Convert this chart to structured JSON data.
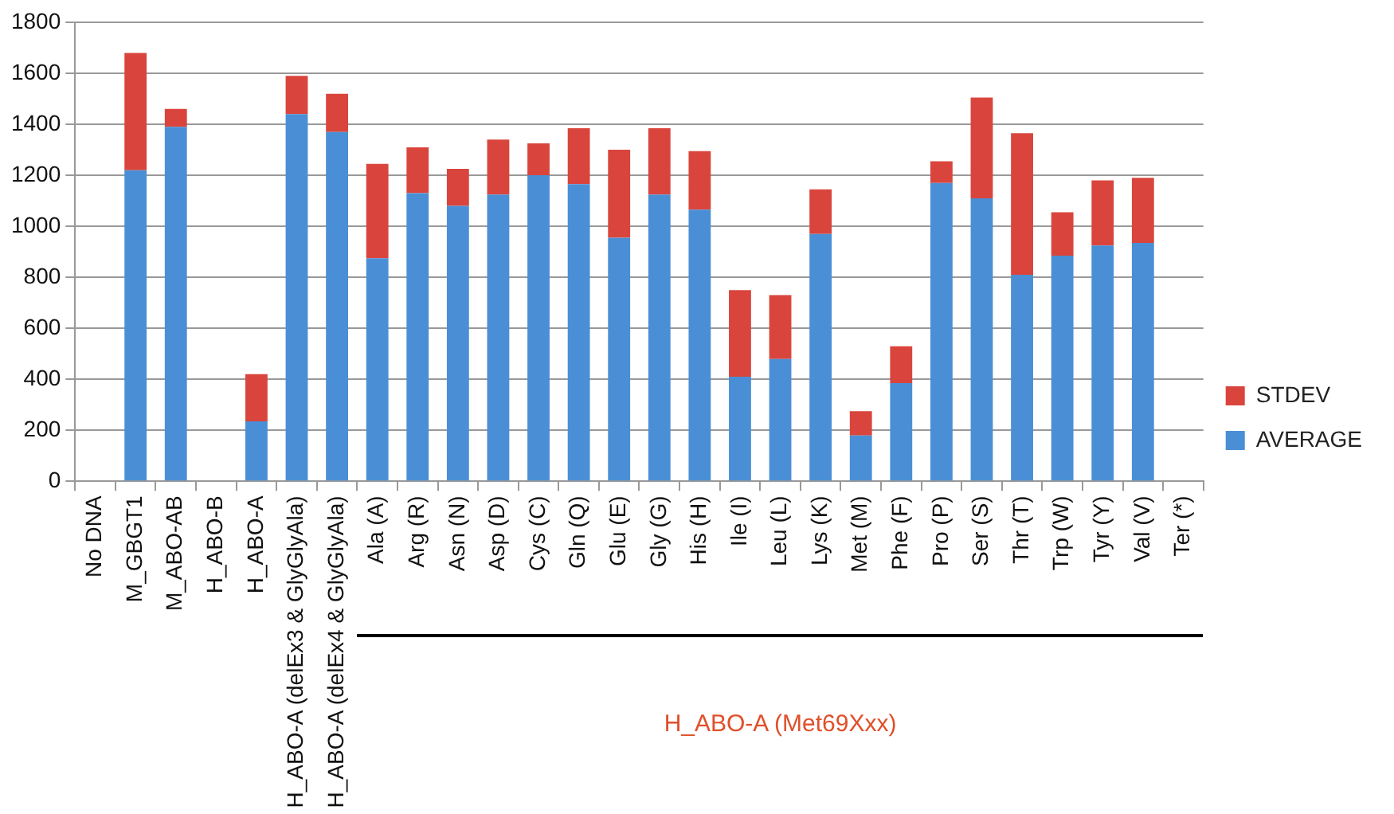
{
  "chart_data": {
    "type": "bar",
    "stacked": true,
    "categories": [
      "No DNA",
      "M_GBGT1",
      "M_ABO-AB",
      "H_ABO-B",
      "H_ABO-A",
      "H_ABO-A (delEx3 & GlyGlyAla)",
      "H_ABO-A (delEx4 & GlyGlyAla)",
      "Ala (A)",
      "Arg (R)",
      "Asn (N)",
      "Asp (D)",
      "Cys (C)",
      "Gln (Q)",
      "Glu (E)",
      "Gly (G)",
      "His (H)",
      "Ile (I)",
      "Leu (L)",
      "Lys (K)",
      "Met (M)",
      "Phe (F)",
      "Pro (P)",
      "Ser (S)",
      "Thr (T)",
      "Trp (W)",
      "Tyr (Y)",
      "Val (V)",
      "Ter (*)"
    ],
    "series": [
      {
        "name": "AVERAGE",
        "color": "#4a8fd6",
        "values": [
          0,
          1220,
          1390,
          0,
          235,
          1440,
          1370,
          875,
          1130,
          1080,
          1125,
          1200,
          1165,
          955,
          1125,
          1065,
          410,
          480,
          970,
          180,
          385,
          1170,
          1110,
          810,
          885,
          925,
          935,
          0
        ]
      },
      {
        "name": "STDEV",
        "color": "#d9453d",
        "values": [
          0,
          460,
          70,
          0,
          185,
          150,
          150,
          370,
          180,
          145,
          215,
          125,
          220,
          345,
          260,
          230,
          340,
          250,
          175,
          95,
          145,
          85,
          395,
          555,
          170,
          255,
          255,
          0
        ]
      }
    ],
    "ylim": [
      0,
      1800
    ],
    "yticks": [
      0,
      200,
      400,
      600,
      800,
      1000,
      1200,
      1400,
      1600,
      1800
    ],
    "grid": "y",
    "legend": "right",
    "annotations": [
      "H_ABO-A (Met69Xxx)"
    ]
  }
}
